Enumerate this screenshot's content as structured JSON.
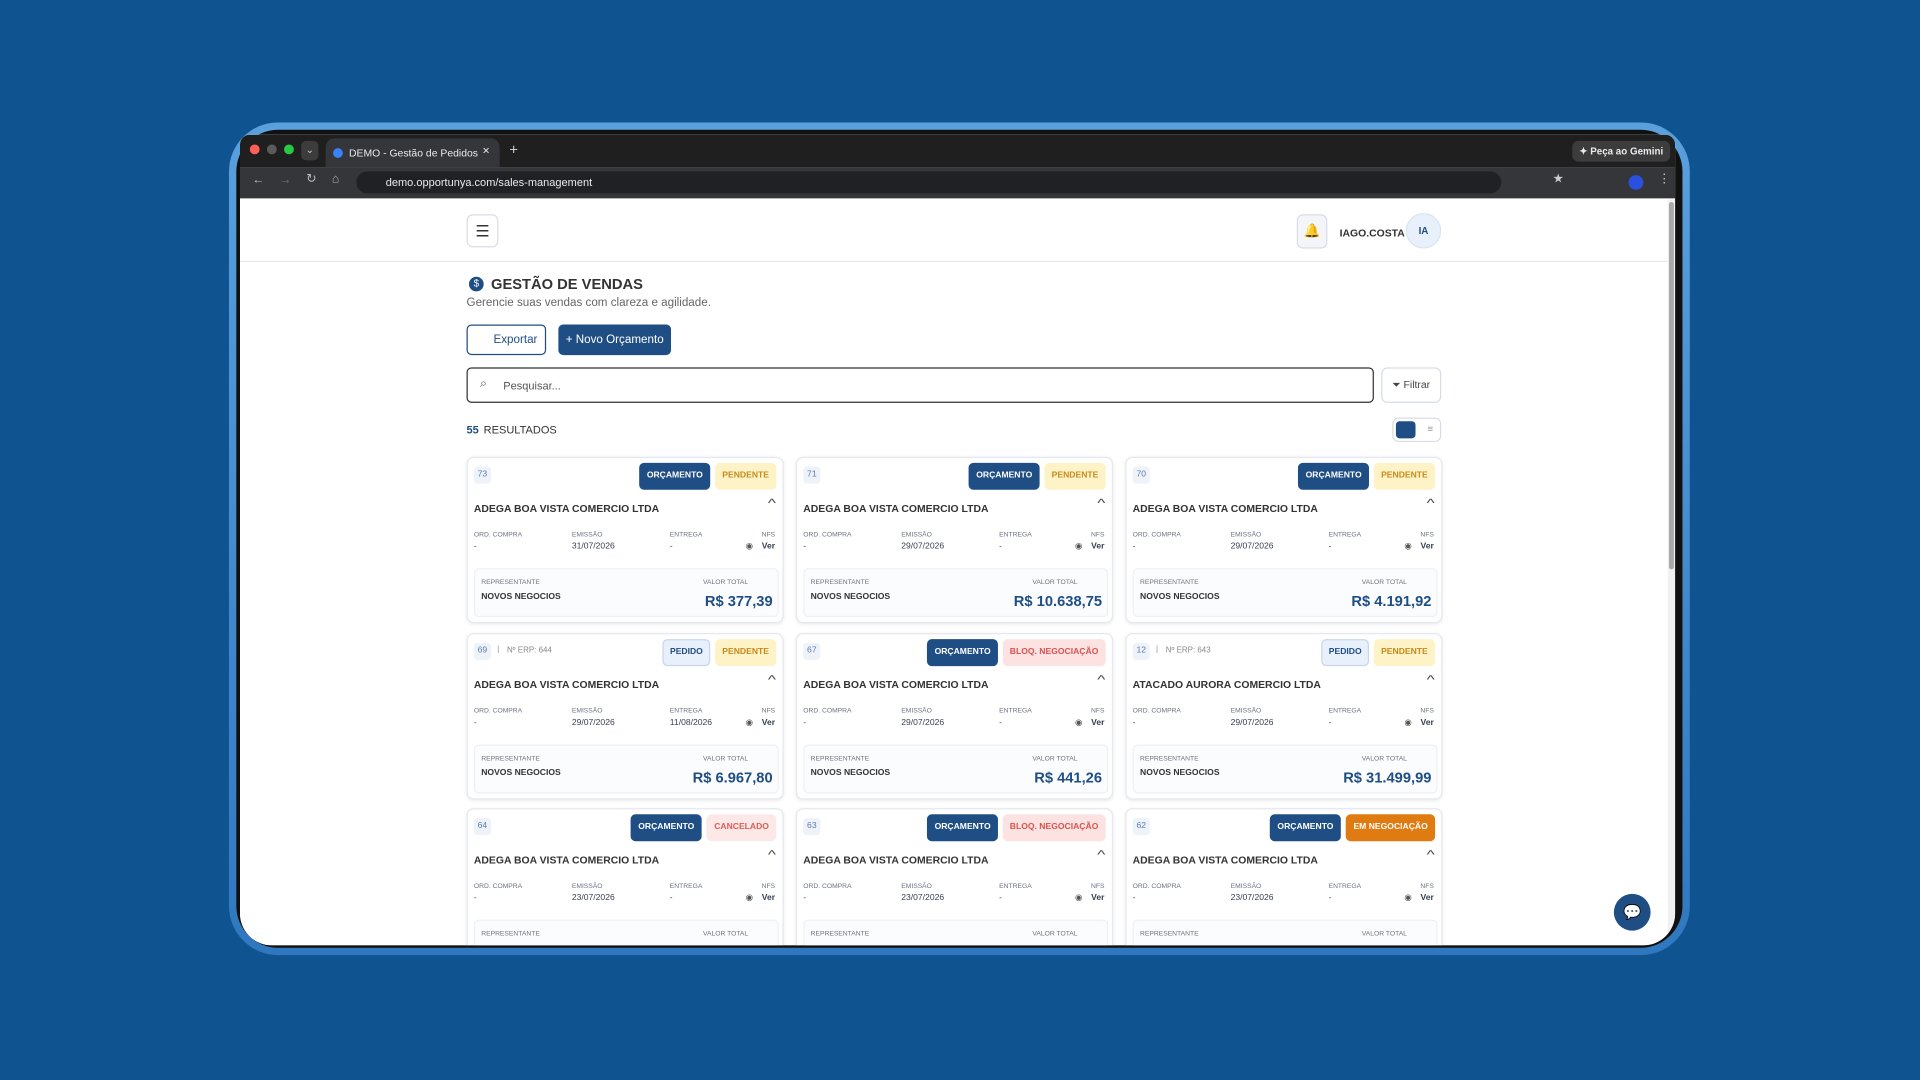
{
  "browser": {
    "tab_title": "DEMO - Gestão de Pedidos",
    "url": "demo.opportunya.com/sales-management",
    "gemini": "Peça ao Gemini"
  },
  "header": {
    "user": "IAGO.COSTA",
    "initials": "IA"
  },
  "page": {
    "title": "GESTÃO DE VENDAS",
    "subtitle": "Gerencie suas vendas com clareza e agilidade.",
    "export": "Exportar",
    "new_quote": "+ Novo Orçamento",
    "search_placeholder": "Pesquisar...",
    "filter": "Filtrar",
    "results_count": "55",
    "results_label": "RESULTADOS"
  },
  "card_labels": {
    "ord_compra": "ORD. COMPRA",
    "emissao": "EMISSÃO",
    "entrega": "ENTREGA",
    "nfs": "NFS",
    "ver": "Ver",
    "representante": "REPRESENTANTE",
    "valor_total": "VALOR TOTAL"
  },
  "cards": [
    {
      "id": "73",
      "type": {
        "text": "ORÇAMENTO",
        "fg": "#ffffff",
        "bg": "#1f4e85"
      },
      "status": {
        "text": "PENDENTE",
        "fg": "#c8891a",
        "bg": "#fdf3c7"
      },
      "client": "ADEGA BOA VISTA COMERCIO LTDA",
      "ord_compra": "-",
      "emissao": "31/07/2026",
      "entrega": "-",
      "representante": "NOVOS NEGOCIOS",
      "valor": "R$ 377,39"
    },
    {
      "id": "71",
      "type": {
        "text": "ORÇAMENTO",
        "fg": "#ffffff",
        "bg": "#1f4e85"
      },
      "status": {
        "text": "PENDENTE",
        "fg": "#c8891a",
        "bg": "#fdf3c7"
      },
      "client": "ADEGA BOA VISTA COMERCIO LTDA",
      "ord_compra": "-",
      "emissao": "29/07/2026",
      "entrega": "-",
      "representante": "NOVOS NEGOCIOS",
      "valor": "R$ 10.638,75"
    },
    {
      "id": "70",
      "type": {
        "text": "ORÇAMENTO",
        "fg": "#ffffff",
        "bg": "#1f4e85"
      },
      "status": {
        "text": "PENDENTE",
        "fg": "#c8891a",
        "bg": "#fdf3c7"
      },
      "client": "ADEGA BOA VISTA COMERCIO LTDA",
      "ord_compra": "-",
      "emissao": "29/07/2026",
      "entrega": "-",
      "representante": "NOVOS NEGOCIOS",
      "valor": "R$ 4.191,92"
    },
    {
      "id": "69",
      "erp": "Nº ERP: 644",
      "type": {
        "text": "PEDIDO",
        "fg": "#1f4e85",
        "bg": "#e8f0fb"
      },
      "status": {
        "text": "PENDENTE",
        "fg": "#c8891a",
        "bg": "#fdf3c7"
      },
      "client": "ADEGA BOA VISTA COMERCIO LTDA",
      "ord_compra": "-",
      "emissao": "29/07/2026",
      "entrega": "11/08/2026",
      "representante": "NOVOS NEGOCIOS",
      "valor": "R$ 6.967,80"
    },
    {
      "id": "67",
      "type": {
        "text": "ORÇAMENTO",
        "fg": "#ffffff",
        "bg": "#1f4e85"
      },
      "status": {
        "text": "BLOQ. NEGOCIAÇÃO",
        "fg": "#d9534f",
        "bg": "#fde2e2"
      },
      "client": "ADEGA BOA VISTA COMERCIO LTDA",
      "ord_compra": "-",
      "emissao": "29/07/2026",
      "entrega": "-",
      "representante": "NOVOS NEGOCIOS",
      "valor": "R$ 441,26"
    },
    {
      "id": "12",
      "erp": "Nº ERP: 643",
      "type": {
        "text": "PEDIDO",
        "fg": "#1f4e85",
        "bg": "#e8f0fb"
      },
      "status": {
        "text": "PENDENTE",
        "fg": "#c8891a",
        "bg": "#fdf3c7"
      },
      "client": "ATACADO AURORA COMERCIO LTDA",
      "ord_compra": "-",
      "emissao": "29/07/2026",
      "entrega": "-",
      "representante": "NOVOS NEGOCIOS",
      "valor": "R$ 31.499,99"
    },
    {
      "id": "64",
      "type": {
        "text": "ORÇAMENTO",
        "fg": "#ffffff",
        "bg": "#1f4e85"
      },
      "status": {
        "text": "CANCELADO",
        "fg": "#e05a5a",
        "bg": "#fde8e8"
      },
      "client": "ADEGA BOA VISTA COMERCIO LTDA",
      "ord_compra": "-",
      "emissao": "23/07/2026",
      "entrega": "-"
    },
    {
      "id": "63",
      "type": {
        "text": "ORÇAMENTO",
        "fg": "#ffffff",
        "bg": "#1f4e85"
      },
      "status": {
        "text": "BLOQ. NEGOCIAÇÃO",
        "fg": "#d9534f",
        "bg": "#fde2e2"
      },
      "client": "ADEGA BOA VISTA COMERCIO LTDA",
      "ord_compra": "-",
      "emissao": "23/07/2026",
      "entrega": "-"
    },
    {
      "id": "62",
      "type": {
        "text": "ORÇAMENTO",
        "fg": "#ffffff",
        "bg": "#1f4e85"
      },
      "status": {
        "text": "EM NEGOCIAÇÃO",
        "fg": "#ffffff",
        "bg": "#e07b12"
      },
      "client": "ADEGA BOA VISTA COMERCIO LTDA",
      "ord_compra": "-",
      "emissao": "23/07/2026",
      "entrega": "-"
    }
  ]
}
